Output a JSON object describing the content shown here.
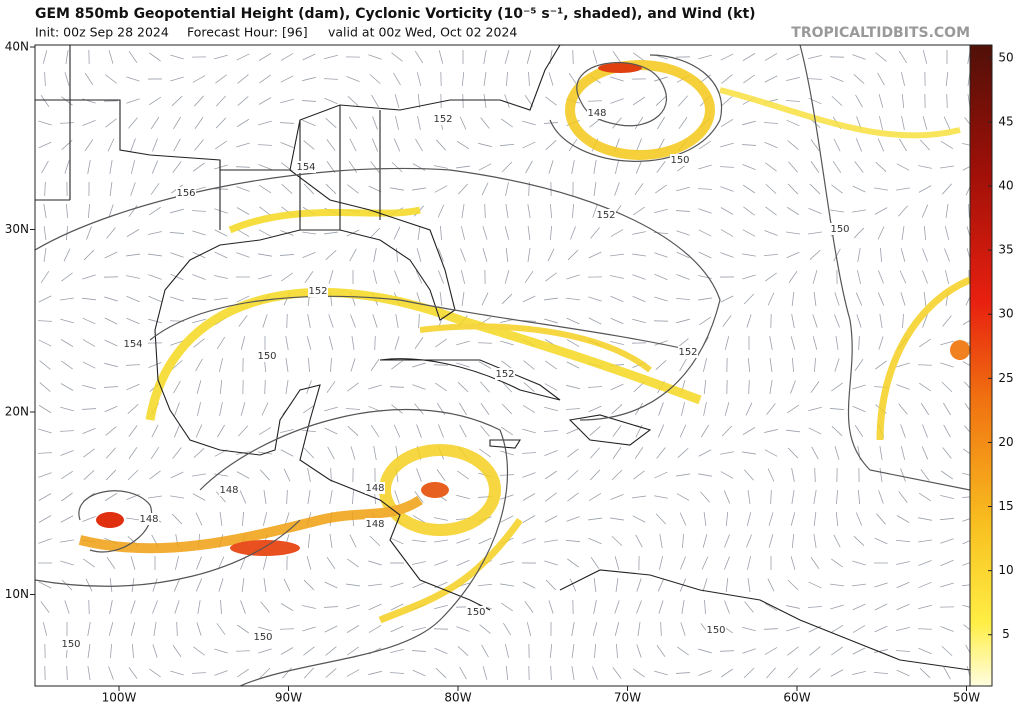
{
  "header": {
    "title": "GEM 850mb Geopotential Height (dam), Cyclonic Vorticity (10⁻⁵ s⁻¹, shaded), and Wind (kt)",
    "init": "Init: 00z Sep 28 2024",
    "forecast_hour": "Forecast Hour: [96]",
    "valid": "valid at 00z Wed, Oct 02 2024",
    "watermark": "TROPICALTIDBITS.COM"
  },
  "map": {
    "lat_ticks": [
      {
        "value": 40,
        "label": "40N"
      },
      {
        "value": 30,
        "label": "30N"
      },
      {
        "value": 20,
        "label": "20N"
      },
      {
        "value": 10,
        "label": "10N"
      }
    ],
    "lon_ticks": [
      {
        "value": -100,
        "label": "100W"
      },
      {
        "value": -90,
        "label": "90W"
      },
      {
        "value": -80,
        "label": "80W"
      },
      {
        "value": -70,
        "label": "70W"
      },
      {
        "value": -60,
        "label": "60W"
      },
      {
        "value": -50,
        "label": "50W"
      }
    ],
    "contour_labels": [
      "152",
      "154",
      "156",
      "152",
      "150",
      "148",
      "150",
      "152",
      "154",
      "150",
      "152",
      "152",
      "148",
      "148",
      "148",
      "148",
      "150",
      "150",
      "150",
      "150"
    ]
  },
  "colorbar": {
    "range": [
      1,
      51
    ],
    "ticks": [
      5,
      10,
      15,
      20,
      25,
      30,
      35,
      40,
      45,
      50
    ]
  }
}
